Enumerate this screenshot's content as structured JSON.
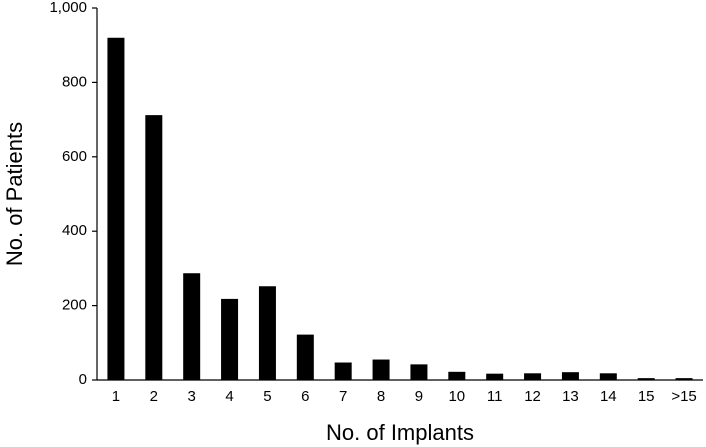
{
  "chart_data": {
    "type": "bar",
    "x_label": "No. of Implants",
    "y_label": "No. of Patients",
    "categories": [
      "1",
      "2",
      "3",
      "4",
      "5",
      "6",
      "7",
      "8",
      "9",
      "10",
      "11",
      "12",
      "13",
      "14",
      "15",
      ">15"
    ],
    "values": [
      920,
      712,
      287,
      218,
      252,
      122,
      47,
      55,
      42,
      22,
      17,
      18,
      21,
      18,
      5,
      5
    ],
    "color": "#000000",
    "ylim": [
      0,
      1000
    ],
    "yticks": [
      0,
      200,
      400,
      600,
      800,
      {
        "value": 1000,
        "label": "1,000"
      }
    ],
    "grid": false
  }
}
